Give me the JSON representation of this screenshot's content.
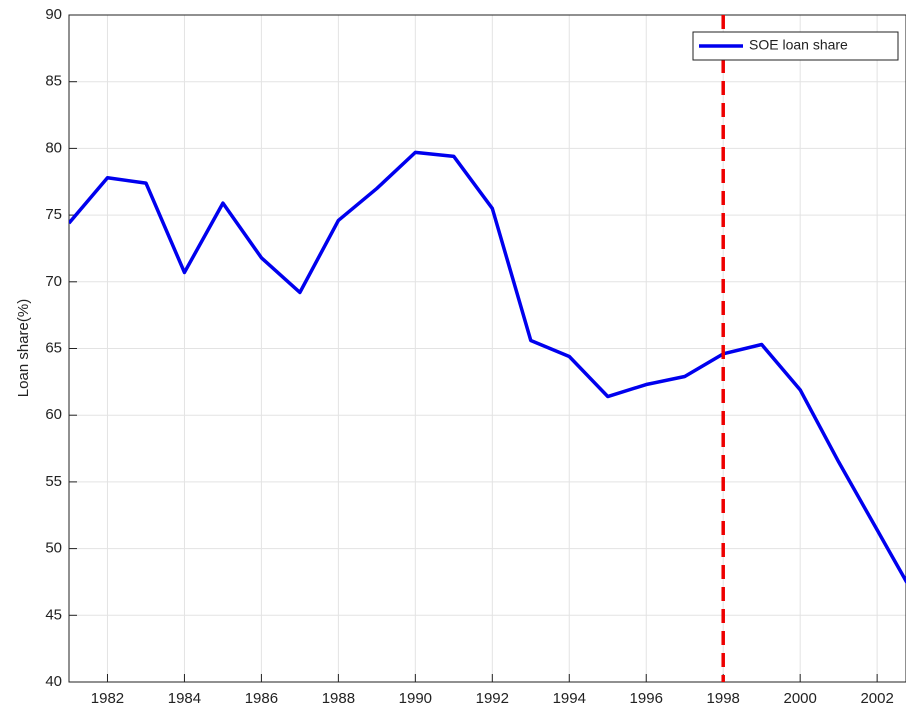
{
  "chart_data": {
    "type": "line",
    "y_label": "Loan share(%)",
    "x": [
      1981,
      1982,
      1983,
      1984,
      1985,
      1986,
      1987,
      1988,
      1989,
      1990,
      1991,
      1992,
      1993,
      1994,
      1995,
      1996,
      1997,
      1998,
      1999,
      2000,
      2001,
      2002,
      2003
    ],
    "series": [
      {
        "name": "SOE loan share",
        "color": "#0000ee",
        "values": [
          74.4,
          77.8,
          77.4,
          70.7,
          75.9,
          71.8,
          69.2,
          74.6,
          77.0,
          79.7,
          79.4,
          75.5,
          65.6,
          64.4,
          61.4,
          62.3,
          62.9,
          64.6,
          65.3,
          61.9,
          56.5,
          51.4,
          46.3
        ]
      }
    ],
    "vline": {
      "x": 1998,
      "color": "#ee0000"
    },
    "xlim": [
      1981,
      2002.75
    ],
    "ylim": [
      40,
      90
    ],
    "xticks": [
      1982,
      1984,
      1986,
      1988,
      1990,
      1992,
      1994,
      1996,
      1998,
      2000,
      2002
    ],
    "yticks": [
      40,
      45,
      50,
      55,
      60,
      65,
      70,
      75,
      80,
      85,
      90
    ],
    "grid": true,
    "legend": "northeast"
  }
}
